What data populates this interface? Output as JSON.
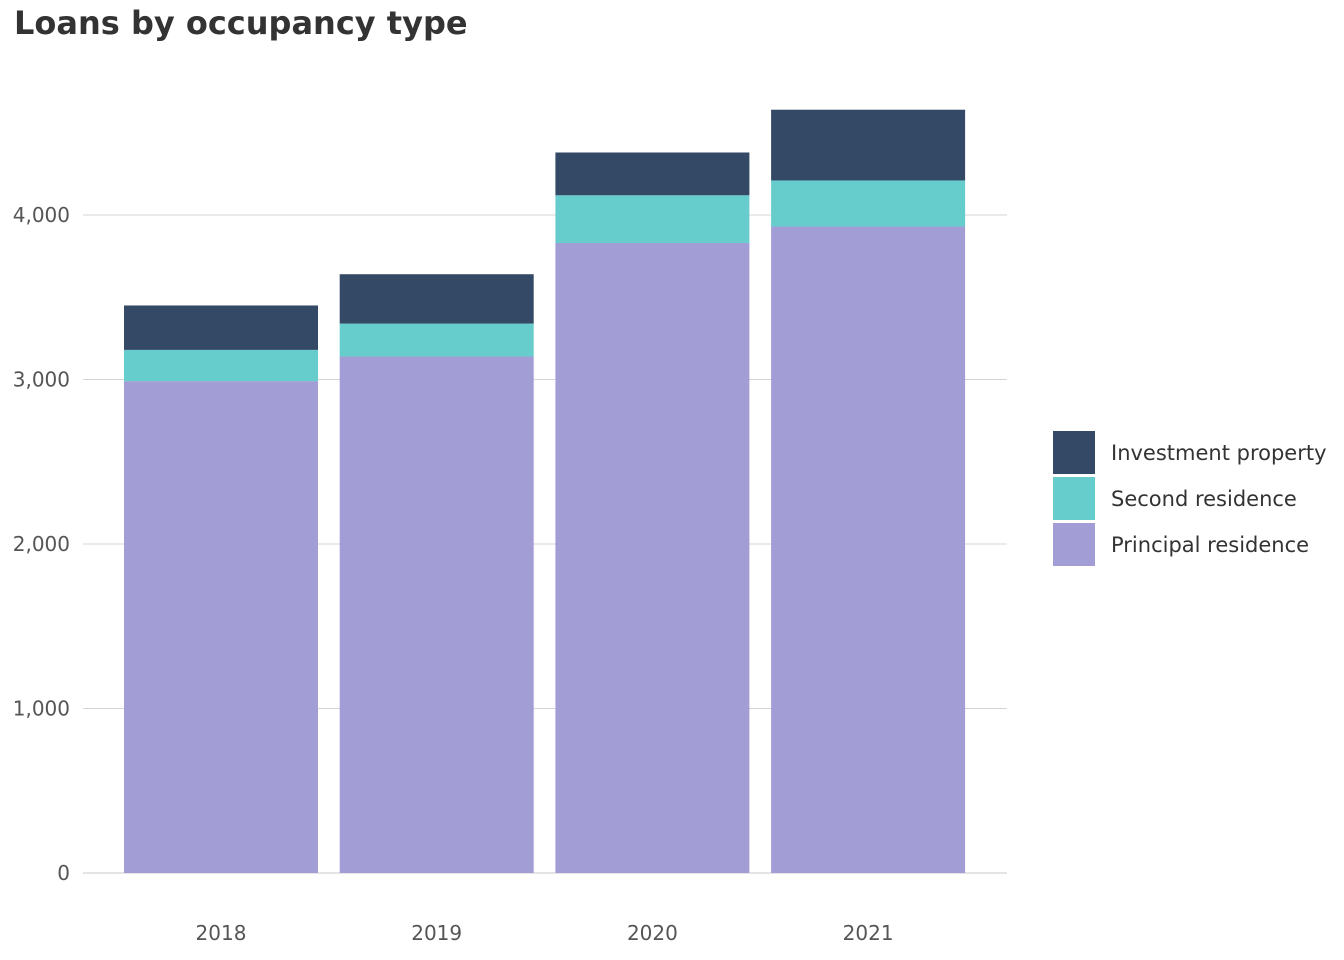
{
  "chart_data": {
    "type": "bar",
    "stacked": true,
    "title": "Loans by occupancy type",
    "xlabel": "",
    "ylabel": "",
    "categories": [
      "2018",
      "2019",
      "2020",
      "2021"
    ],
    "ylim": [
      0,
      4600
    ],
    "yticks": [
      0,
      1000,
      2000,
      3000,
      4000
    ],
    "ytick_labels": [
      "0",
      "1,000",
      "2,000",
      "3,000",
      "4,000"
    ],
    "grid": true,
    "legend_position": "right",
    "series": [
      {
        "name": "Principal residence",
        "color": "#a29ed5",
        "values": [
          2990,
          3140,
          3830,
          3930
        ]
      },
      {
        "name": "Second residence",
        "color": "#66cdcc",
        "values": [
          190,
          200,
          290,
          280
        ]
      },
      {
        "name": "Investment property",
        "color": "#334966",
        "values": [
          270,
          300,
          260,
          430
        ]
      }
    ],
    "legend": [
      {
        "name": "Investment property",
        "color": "#334966"
      },
      {
        "name": "Second residence",
        "color": "#66cdcc"
      },
      {
        "name": "Principal residence",
        "color": "#a29ed5"
      }
    ]
  }
}
